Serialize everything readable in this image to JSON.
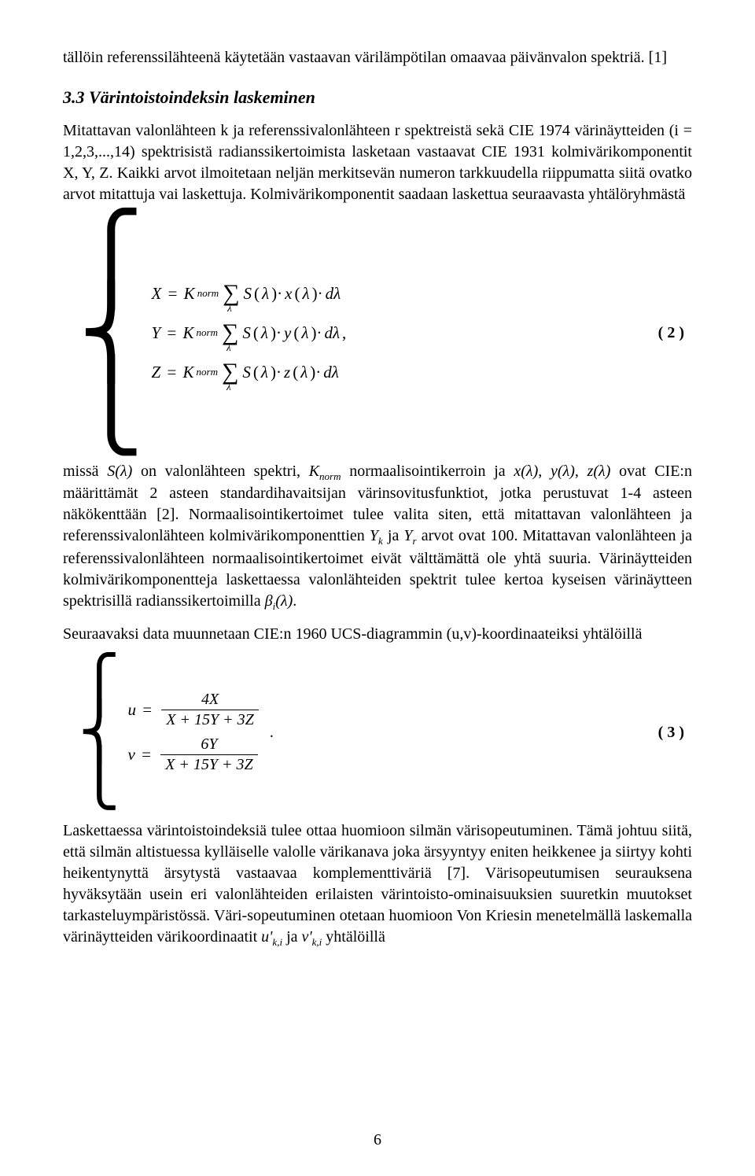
{
  "intro_line": "tällöin referenssilähteenä käytetään vastaavan värilämpötilan omaavaa päivänvalon spektriä. [1]",
  "section": {
    "title": "3.3 Värintoistoindeksin laskeminen"
  },
  "para1": "Mitattavan valonlähteen k ja referenssivalonlähteen r spektreistä sekä CIE 1974 värinäytteiden (i = 1,2,3,...,14) spektrisistä radianssikertoimista lasketaan vastaavat CIE 1931 kolmivärikomponentit X, Y, Z. Kaikki arvot ilmoitetaan neljän merkitsevän numeron tarkkuudella riippumatta siitä ovatko arvot mitattuja vai laskettuja. Kolmivärikomponentit saadaan laskettua seuraavasta yhtälöryhmästä",
  "eq2": {
    "lines": {
      "x": "X = K_norm Σ S(λ)·x(λ)·dλ",
      "y": "Y = K_norm Σ S(λ)·y(λ)·dλ",
      "z": "Z = K_norm Σ S(λ)·z(λ)·dλ"
    },
    "comma": ",",
    "number": "( 2 )"
  },
  "para2_a": "missä ",
  "para2_b": " on valonlähteen spektri, ",
  "para2_c": " normaalisointikerroin ja ",
  "para2_d": " ovat CIE:n määrittämät 2 asteen standardihavaitsijan värinsovitusfunktiot, jotka perustuvat 1-4 asteen näkökenttään [2]. Normaalisointikertoimet tulee valita siten, että mitattavan valonlähteen ja referenssivalonlähteen kolmivärikomponenttien ",
  "para2_e": " ja ",
  "para2_f": " arvot ovat 100. Mitattavan valonlähteen ja referenssivalonlähteen normaalisointikertoimet eivät välttämättä ole yhtä suuria. Värinäytteiden kolmivärikomponentteja laskettaessa valonlähteiden spektrit tulee kertoa kyseisen värinäytteen spektrisillä radianssikertoimilla ",
  "para2_g": ".",
  "sym": {
    "S_lambda": "S(λ)",
    "K_norm": "K_norm",
    "x_l": "x(λ)",
    "y_l": "y(λ)",
    "z_l": "z(λ)",
    "Yk": "Y_k",
    "Yr": "Y_r",
    "beta_i_l": "β_i(λ)"
  },
  "para3": "Seuraavaksi data muunnetaan CIE:n 1960 UCS-diagrammin (u,v)-koordinaateiksi yhtälöillä",
  "eq3": {
    "u_num": "4X",
    "u_den": "X + 15Y + 3Z",
    "v_num": "6Y",
    "v_den": "X + 15Y + 3Z",
    "period": ".",
    "number": "( 3 )"
  },
  "para4_a": "Laskettaessa värintoistoindeksiä tulee ottaa huomioon silmän värisopeutuminen. Tämä johtuu siitä, että silmän altistuessa kylläiselle valolle värikanava joka ärsyyntyy eniten heikkenee ja siirtyy kohti heikentynyttä ärsytystä vastaavaa komplementtiväriä [7]. Värisopeutumisen seurauksena hyväksytään usein eri valonlähteiden erilaisten värintoisto-ominaisuuksien suuretkin muutokset tarkasteluympäristössä. Väri-sopeutuminen otetaan huomioon Von Kriesin menetelmällä laskemalla värinäytteiden värikoordinaatit ",
  "para4_b": " ja ",
  "para4_c": " yhtälöillä",
  "sym2": {
    "u_prime": "u'_k,i",
    "v_prime": "v'_k,i"
  },
  "page_number": "6"
}
